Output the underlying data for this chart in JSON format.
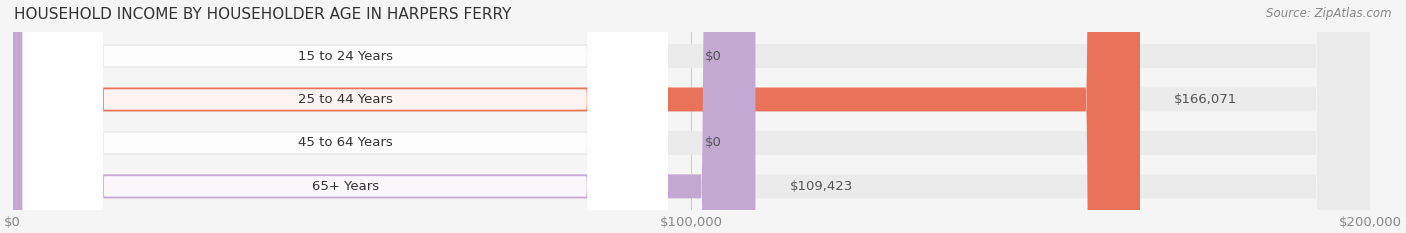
{
  "title": "HOUSEHOLD INCOME BY HOUSEHOLDER AGE IN HARPERS FERRY",
  "source": "Source: ZipAtlas.com",
  "categories": [
    "15 to 24 Years",
    "25 to 44 Years",
    "45 to 64 Years",
    "65+ Years"
  ],
  "values": [
    0,
    166071,
    0,
    109423
  ],
  "bar_colors": [
    "#f5c89a",
    "#e8735a",
    "#a8bfe0",
    "#c3a8d1"
  ],
  "value_labels": [
    "$0",
    "$166,071",
    "$0",
    "$109,423"
  ],
  "xlim": [
    0,
    200000
  ],
  "xticks": [
    0,
    100000,
    200000
  ],
  "xticklabels": [
    "$0",
    "$100,000",
    "$200,000"
  ],
  "background_color": "#f5f5f5",
  "bar_bg_color": "#ebebeb",
  "bar_height": 0.55,
  "title_fontsize": 11,
  "label_fontsize": 9.5,
  "source_fontsize": 8.5
}
